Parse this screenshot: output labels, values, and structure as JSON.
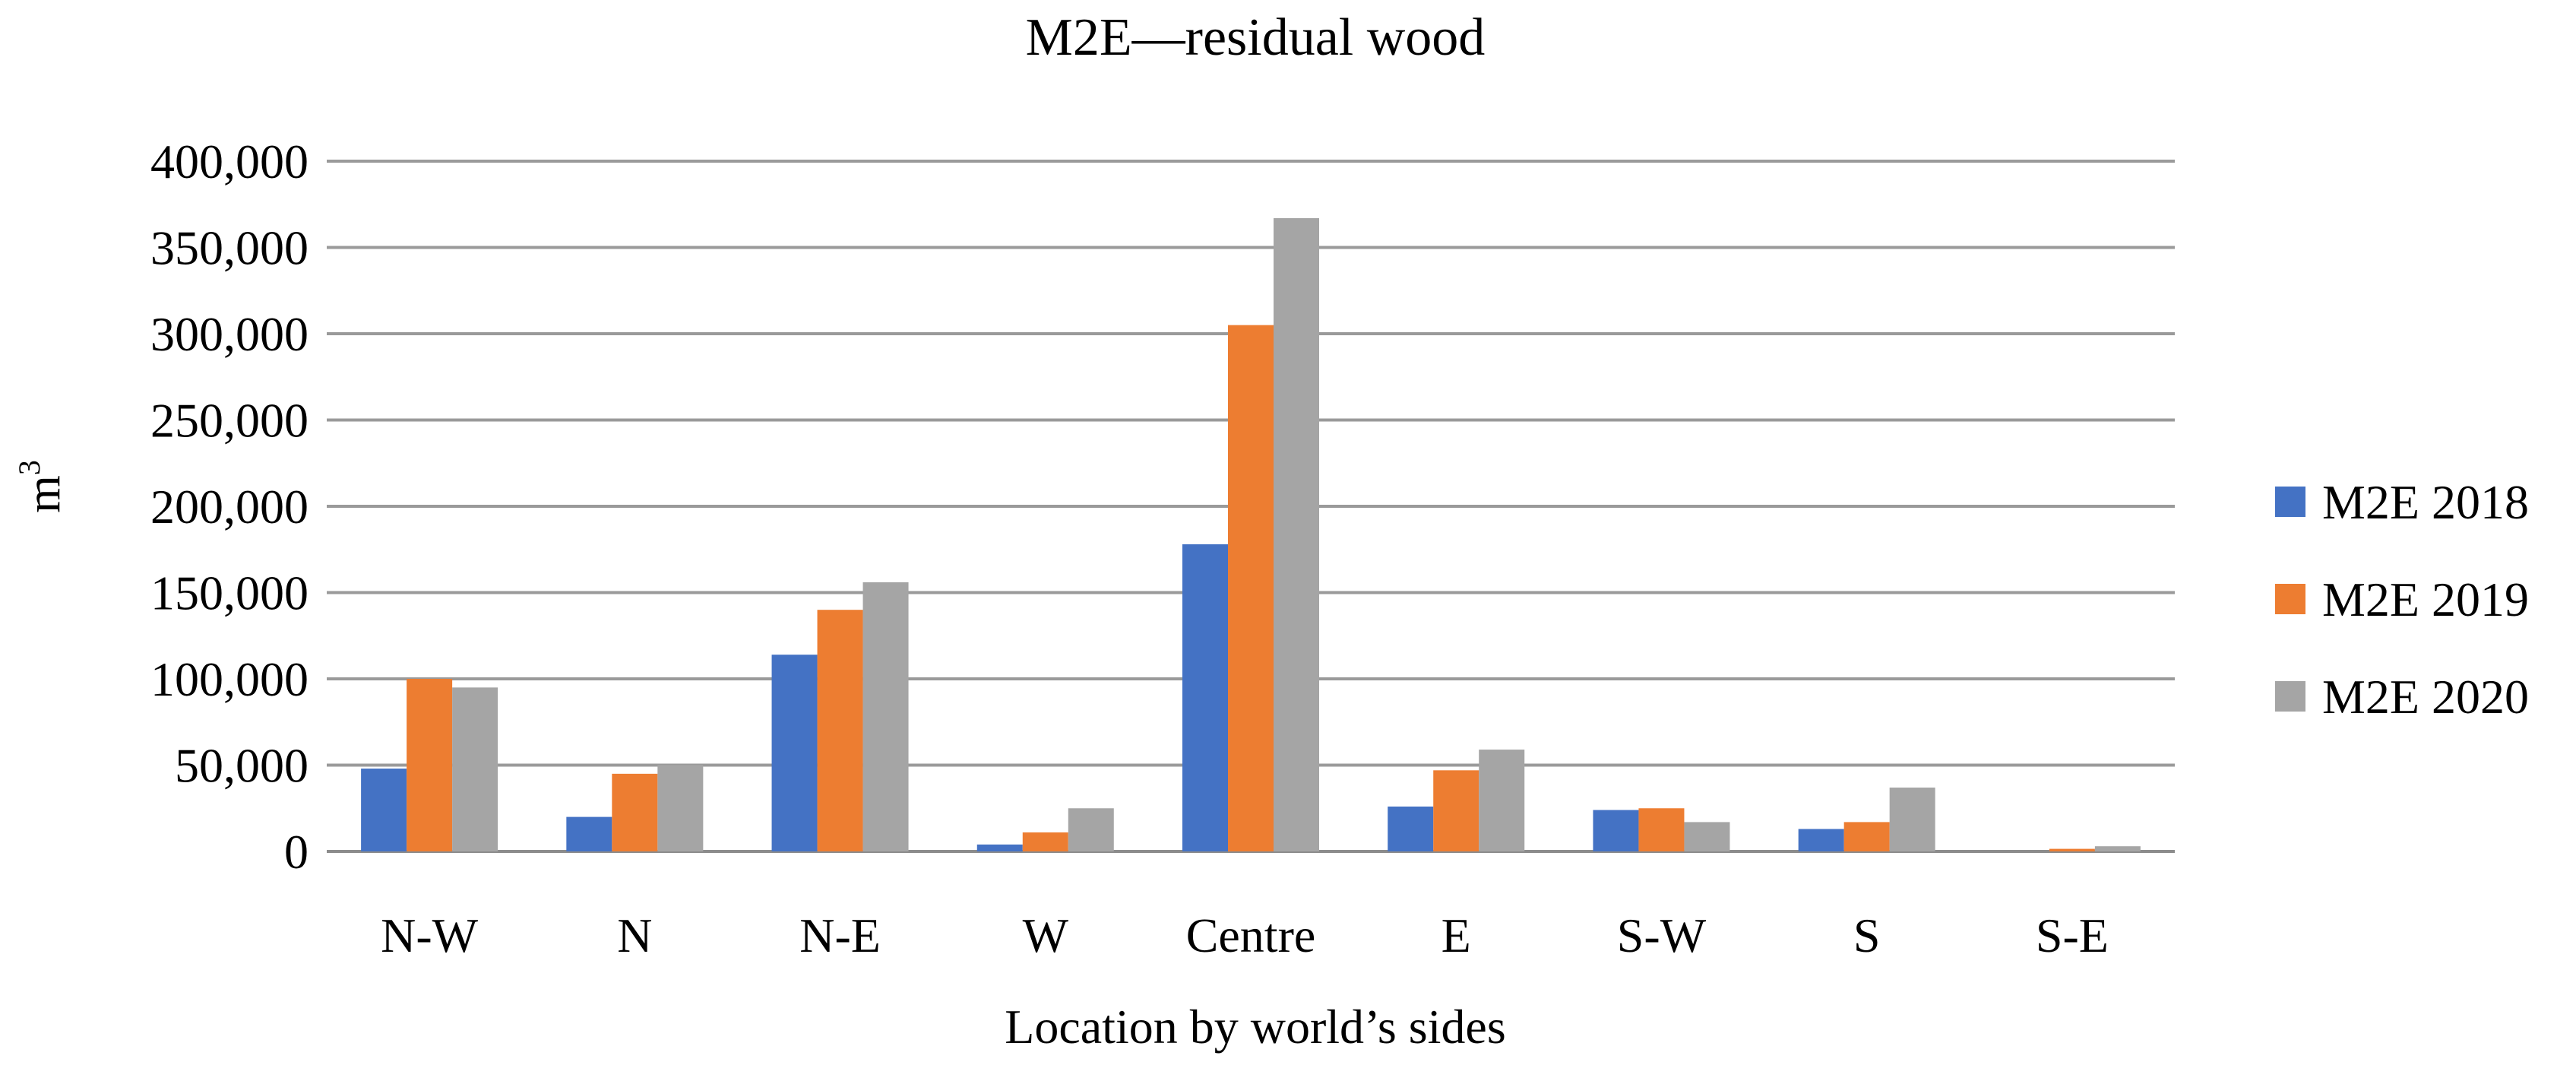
{
  "chart_data": {
    "type": "bar",
    "title": "M2E—residual wood",
    "xlabel": "Location by world’s sides",
    "ylabel": "m",
    "ylabel_sup": "3",
    "categories": [
      "N-W",
      "N",
      "N-E",
      "W",
      "Centre",
      "E",
      "S-W",
      "S",
      "S-E"
    ],
    "ylim": [
      0,
      400000
    ],
    "yticks": [
      0,
      50000,
      100000,
      150000,
      200000,
      250000,
      300000,
      350000,
      400000
    ],
    "ytick_labels": [
      "0",
      "50,000",
      "100,000",
      "150,000",
      "200,000",
      "250,000",
      "300,000",
      "350,000",
      "400,000"
    ],
    "grid": true,
    "legend_position": "right",
    "series": [
      {
        "name": "M2E 2018",
        "color": "#4472C4",
        "values": [
          48000,
          20000,
          114000,
          4000,
          178000,
          26000,
          24000,
          13000,
          0
        ]
      },
      {
        "name": "M2E 2019",
        "color": "#ED7D31",
        "values": [
          100000,
          45000,
          140000,
          11000,
          305000,
          47000,
          25000,
          17000,
          1500
        ]
      },
      {
        "name": "M2E 2020",
        "color": "#A5A5A5",
        "values": [
          95000,
          50000,
          156000,
          25000,
          367000,
          59000,
          17000,
          37000,
          3000
        ]
      }
    ]
  }
}
